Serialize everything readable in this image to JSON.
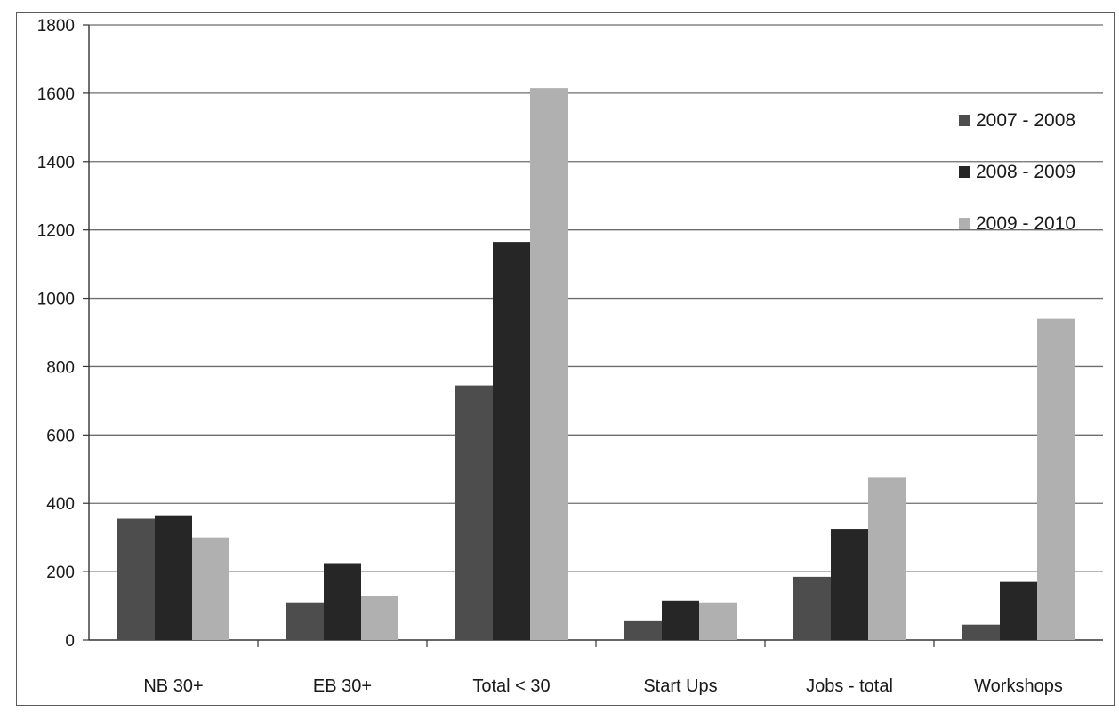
{
  "chart_data": {
    "type": "bar",
    "title": "",
    "xlabel": "",
    "ylabel": "",
    "categories": [
      "NB 30+",
      "EB 30+",
      "Total < 30",
      "Start Ups",
      "Jobs - total",
      "Workshops"
    ],
    "series": [
      {
        "name": "2007 - 2008",
        "values": [
          355,
          110,
          745,
          55,
          185,
          45
        ],
        "color": "#4d4d4d"
      },
      {
        "name": "2008 - 2009",
        "values": [
          365,
          225,
          1165,
          115,
          325,
          170
        ],
        "color": "#262626"
      },
      {
        "name": "2009 - 2010",
        "values": [
          300,
          130,
          1615,
          110,
          475,
          940
        ],
        "color": "#b0b0b0"
      }
    ],
    "ylim": [
      0,
      1800
    ],
    "yticks": [
      0,
      200,
      400,
      600,
      800,
      1000,
      1200,
      1400,
      1600,
      1800
    ],
    "grid": true,
    "legend_position": "right"
  }
}
